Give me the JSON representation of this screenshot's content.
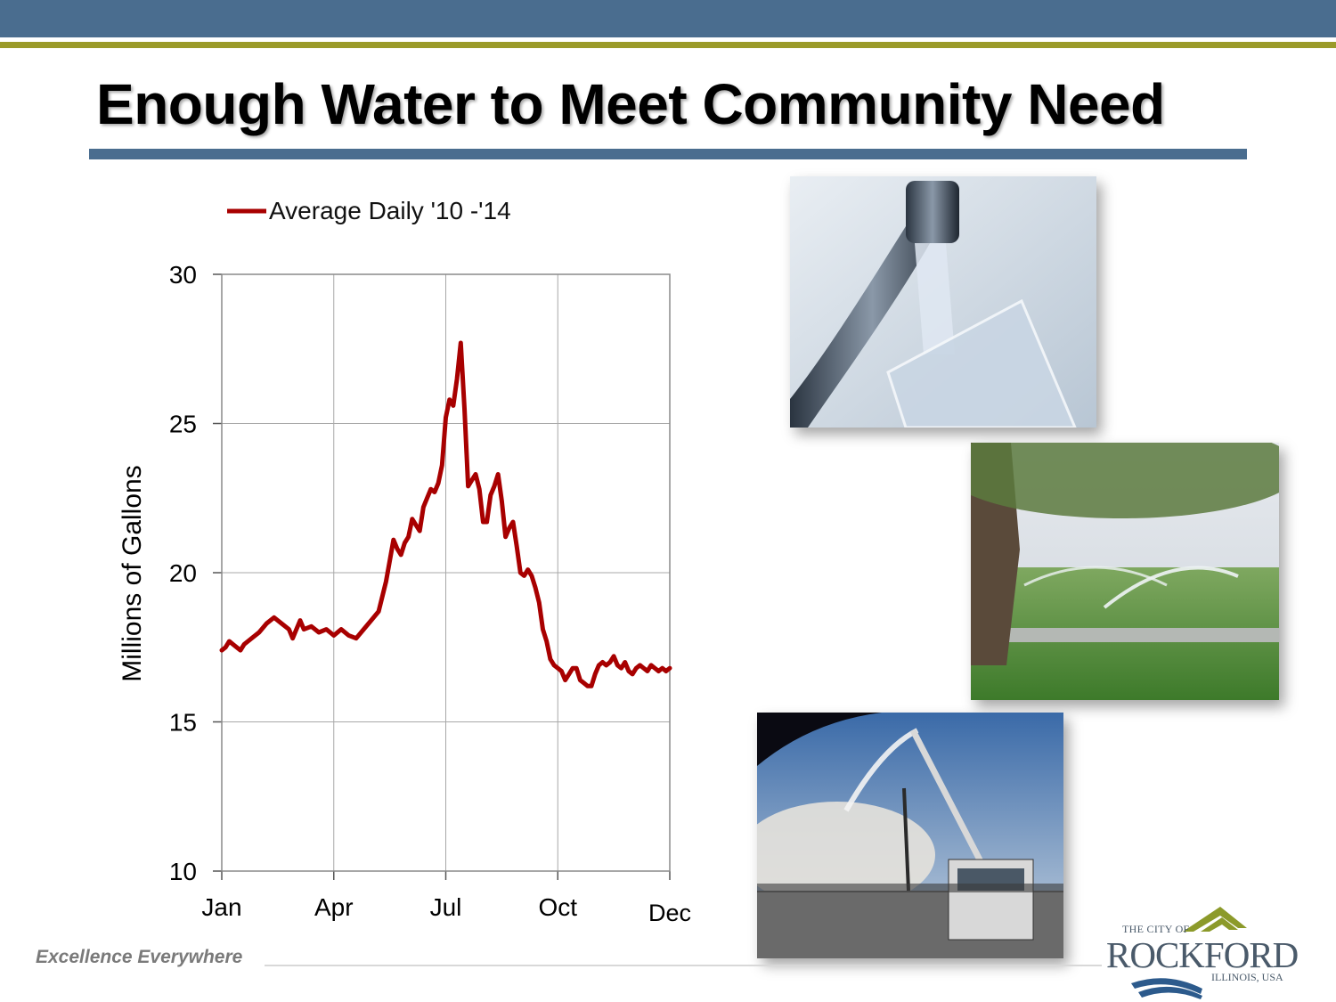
{
  "slide": {
    "title": "Enough Water to Meet Community Need",
    "tagline": "Excellence Everywhere"
  },
  "logo": {
    "top_text": "THE CITY OF",
    "main_text": "ROCKFORD",
    "sub_text": "ILLINOIS, USA"
  },
  "colors": {
    "header_band": "#4a6d8f",
    "header_gold": "#9a9a2a",
    "series_line": "#a80000",
    "logo_green": "#8c9a2a",
    "logo_blue": "#2c5a8c"
  },
  "photos": [
    {
      "icon": "faucet-water-glass-photo"
    },
    {
      "icon": "lawn-sprinkler-photo"
    },
    {
      "icon": "fire-truck-photo"
    }
  ],
  "chart_data": {
    "type": "line",
    "title": "",
    "xlabel": "",
    "ylabel": "Millions of Gallons",
    "ylim": [
      10,
      30
    ],
    "xlim": [
      0,
      12
    ],
    "yticks": [
      10,
      15,
      20,
      25,
      30
    ],
    "xtick_labels": [
      "Jan",
      "Apr",
      "Jul",
      "Oct",
      "Dec"
    ],
    "xtick_positions": [
      0,
      3,
      6,
      9,
      12
    ],
    "grid": true,
    "legend_position": "top",
    "series": [
      {
        "name": "Average Daily '10 -'14",
        "x": [
          0.0,
          0.1,
          0.2,
          0.3,
          0.4,
          0.5,
          0.6,
          0.8,
          1.0,
          1.2,
          1.4,
          1.6,
          1.8,
          1.9,
          2.0,
          2.1,
          2.2,
          2.4,
          2.6,
          2.8,
          3.0,
          3.2,
          3.4,
          3.6,
          3.8,
          4.0,
          4.2,
          4.4,
          4.5,
          4.6,
          4.7,
          4.8,
          4.9,
          5.0,
          5.1,
          5.2,
          5.3,
          5.4,
          5.5,
          5.6,
          5.7,
          5.8,
          5.9,
          6.0,
          6.1,
          6.2,
          6.3,
          6.4,
          6.5,
          6.6,
          6.7,
          6.8,
          6.9,
          7.0,
          7.1,
          7.2,
          7.3,
          7.4,
          7.5,
          7.6,
          7.7,
          7.8,
          7.9,
          8.0,
          8.1,
          8.2,
          8.3,
          8.4,
          8.5,
          8.6,
          8.7,
          8.8,
          8.9,
          9.0,
          9.1,
          9.2,
          9.3,
          9.4,
          9.5,
          9.6,
          9.7,
          9.8,
          9.9,
          10.0,
          10.1,
          10.2,
          10.3,
          10.4,
          10.5,
          10.6,
          10.7,
          10.8,
          10.9,
          11.0,
          11.1,
          11.2,
          11.3,
          11.4,
          11.5,
          11.6,
          11.7,
          11.8,
          11.9,
          12.0
        ],
        "values": [
          17.4,
          17.5,
          17.7,
          17.6,
          17.5,
          17.4,
          17.6,
          17.8,
          18.0,
          18.3,
          18.5,
          18.3,
          18.1,
          17.8,
          18.1,
          18.4,
          18.1,
          18.2,
          18.0,
          18.1,
          17.9,
          18.1,
          17.9,
          17.8,
          18.1,
          18.4,
          18.7,
          19.7,
          20.4,
          21.1,
          20.8,
          20.6,
          21.0,
          21.2,
          21.8,
          21.6,
          21.4,
          22.2,
          22.5,
          22.8,
          22.7,
          23.0,
          23.6,
          25.2,
          25.8,
          25.6,
          26.5,
          27.7,
          25.5,
          22.9,
          23.1,
          23.3,
          22.8,
          21.7,
          21.7,
          22.6,
          22.9,
          23.3,
          22.4,
          21.2,
          21.5,
          21.7,
          20.9,
          20.0,
          19.9,
          20.1,
          19.9,
          19.5,
          19.0,
          18.1,
          17.7,
          17.1,
          16.9,
          16.8,
          16.7,
          16.4,
          16.6,
          16.8,
          16.8,
          16.4,
          16.3,
          16.2,
          16.2,
          16.6,
          16.9,
          17.0,
          16.9,
          17.0,
          17.2,
          16.9,
          16.8,
          17.0,
          16.7,
          16.6,
          16.8,
          16.9,
          16.8,
          16.7,
          16.9,
          16.8,
          16.7,
          16.8,
          16.7,
          16.8
        ]
      }
    ]
  }
}
